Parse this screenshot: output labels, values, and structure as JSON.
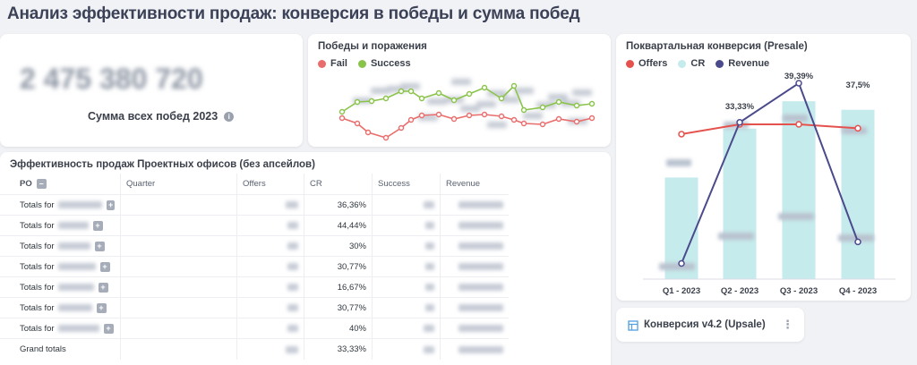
{
  "page_title": "Анализ эффективности продаж: конверсия в победы и сумма побед",
  "kpi": {
    "value": "2 475 380 720",
    "label": "Сумма всех побед 2023",
    "info_icon": "info-icon"
  },
  "wins_losses": {
    "title": "Победы и поражения",
    "legend": [
      {
        "label": "Fail",
        "color": "#e96d6c"
      },
      {
        "label": "Success",
        "color": "#8ac34a"
      }
    ]
  },
  "table": {
    "title": "Эффективность продаж Проектных офисов (без апсейлов)",
    "columns": [
      "PO",
      "Quarter",
      "Offers",
      "CR",
      "Success",
      "Revenue"
    ],
    "rows": [
      {
        "label": "Totals for",
        "cr": "36,36%",
        "name_width": 62
      },
      {
        "label": "Totals for",
        "cr": "44,44%",
        "name_width": 34
      },
      {
        "label": "Totals for",
        "cr": "30%",
        "name_width": 36
      },
      {
        "label": "Totals for",
        "cr": "30,77%",
        "name_width": 42
      },
      {
        "label": "Totals for",
        "cr": "16,67%",
        "name_width": 40
      },
      {
        "label": "Totals for",
        "cr": "30,77%",
        "name_width": 38
      },
      {
        "label": "Totals for",
        "cr": "40%",
        "name_width": 46
      }
    ],
    "grand": {
      "label": "Grand totals",
      "cr": "33,33%"
    },
    "collapse_icon": "minus-icon",
    "expand_icon": "plus-icon"
  },
  "quarterly": {
    "title": "Поквартальная конверсия (Presale)",
    "legend": [
      {
        "label": "Offers",
        "color": "#e5524d"
      },
      {
        "label": "CR",
        "color": "#c6ebec"
      },
      {
        "label": "Revenue",
        "color": "#4a4a8c"
      }
    ],
    "chart_data": {
      "type": "bar",
      "title": "Поквартальная конверсия (Presale)",
      "categories": [
        "Q1 - 2023",
        "Q2 - 2023",
        "Q3 - 2023",
        "Q4 - 2023"
      ],
      "series": [
        {
          "name": "CR",
          "type": "bar",
          "values": [
            22.5,
            33.33,
            39.39,
            37.5
          ],
          "labels": [
            "",
            "33,33%",
            "39,39%",
            "37,5%"
          ]
        },
        {
          "name": "Offers",
          "type": "line",
          "values": [
            0.74,
            0.79,
            0.79,
            0.77
          ]
        },
        {
          "name": "Revenue",
          "type": "line",
          "values": [
            0.08,
            0.8,
            1.0,
            0.19
          ]
        }
      ],
      "ylim": [
        0,
        42
      ]
    }
  },
  "upsale_card": {
    "title": "Конверсия v4.2 (Upsale)",
    "icon": "table-icon",
    "menu_icon": "more-vertical-icon"
  }
}
